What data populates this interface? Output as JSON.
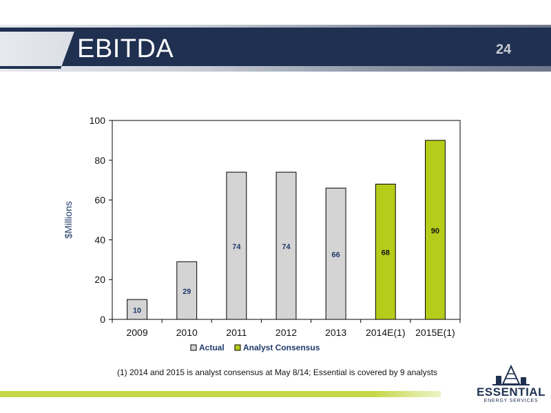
{
  "slide": {
    "title": "EBITDA",
    "page_number": "24",
    "footnote": "(1)  2014 and 2015 is analyst consensus at May 8/14; Essential is covered by 9 analysts",
    "logo": {
      "line1": "ESSENTIAL",
      "line2": "ENERGY SERVICES"
    }
  },
  "colors": {
    "header_dark": "#1f3050",
    "actual_bar": "#d4d4d4",
    "consensus_bar": "#b5cc1a",
    "label_text": "#1f3a6a",
    "accent_bar": "#c6d84a"
  },
  "chart_data": {
    "type": "bar",
    "categories": [
      "2009",
      "2010",
      "2011",
      "2012",
      "2013",
      "2014E(1)",
      "2015E(1)"
    ],
    "values": [
      10,
      29,
      74,
      74,
      66,
      68,
      90
    ],
    "series_index": [
      0,
      0,
      0,
      0,
      0,
      1,
      1
    ],
    "legend": [
      "Actual",
      "Analyst Consensus"
    ],
    "ylabel": "$Millions",
    "ylim": [
      0,
      100
    ],
    "yticks": [
      0,
      20,
      40,
      60,
      80,
      100
    ],
    "grid": false,
    "legend_position": "bottom"
  }
}
